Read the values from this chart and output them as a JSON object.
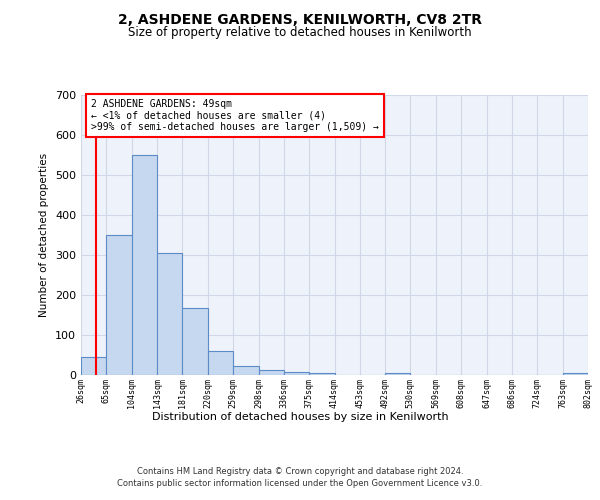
{
  "title1": "2, ASHDENE GARDENS, KENILWORTH, CV8 2TR",
  "title2": "Size of property relative to detached houses in Kenilworth",
  "xlabel": "Distribution of detached houses by size in Kenilworth",
  "ylabel": "Number of detached properties",
  "bar_values": [
    45,
    350,
    550,
    305,
    168,
    60,
    23,
    12,
    8,
    5,
    0,
    0,
    6,
    0,
    0,
    0,
    0,
    0,
    0,
    6
  ],
  "bin_edges": [
    26,
    65,
    104,
    143,
    181,
    220,
    259,
    298,
    336,
    375,
    414,
    453,
    492,
    530,
    569,
    608,
    647,
    686,
    724,
    763,
    802
  ],
  "xtick_labels": [
    "26sqm",
    "65sqm",
    "104sqm",
    "143sqm",
    "181sqm",
    "220sqm",
    "259sqm",
    "298sqm",
    "336sqm",
    "375sqm",
    "414sqm",
    "453sqm",
    "492sqm",
    "530sqm",
    "569sqm",
    "608sqm",
    "647sqm",
    "686sqm",
    "724sqm",
    "763sqm",
    "802sqm"
  ],
  "bar_color": "#c5d8f0",
  "bar_edge_color": "#5b8cc8",
  "bar_edge_width": 0.8,
  "red_line_x": 49,
  "annotation_text": "2 ASHDENE GARDENS: 49sqm\n← <1% of detached houses are smaller (4)\n>99% of semi-detached houses are larger (1,509) →",
  "ylim": [
    0,
    700
  ],
  "yticks": [
    0,
    100,
    200,
    300,
    400,
    500,
    600,
    700
  ],
  "grid_color": "#d0d8e8",
  "bg_color": "#eef2fa",
  "footer1": "Contains HM Land Registry data © Crown copyright and database right 2024.",
  "footer2": "Contains public sector information licensed under the Open Government Licence v3.0."
}
